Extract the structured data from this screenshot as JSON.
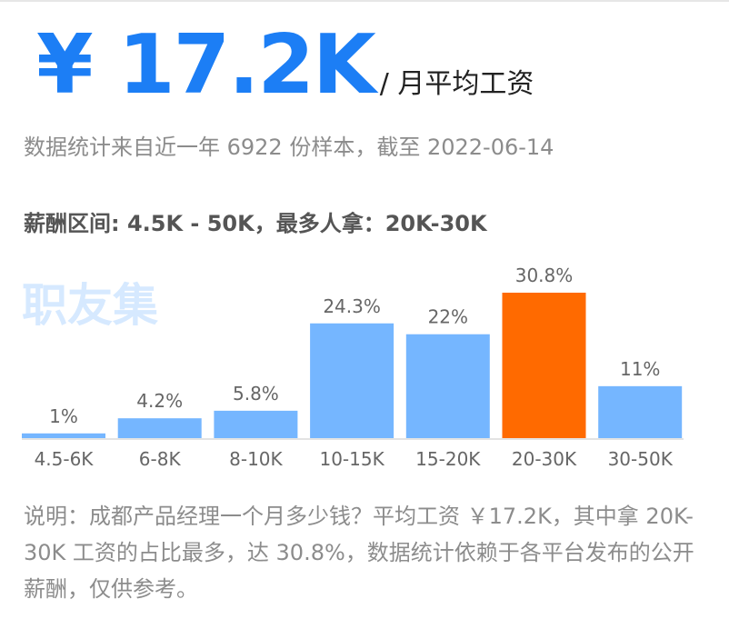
{
  "header": {
    "salary": "¥ 17.2K",
    "unit": "/ 月平均工资"
  },
  "meta": "数据统计来自近一年 6922 份样本，截至 2022-06-14",
  "range_text": "薪酬区间: 4.5K - 50K，最多人拿：20K-30K",
  "watermark": "职友集",
  "chart_data": {
    "type": "bar",
    "categories": [
      "4.5-6K",
      "6-8K",
      "8-10K",
      "10-15K",
      "15-20K",
      "20-30K",
      "30-50K"
    ],
    "values": [
      1,
      4.2,
      5.8,
      24.3,
      22,
      30.8,
      11
    ],
    "value_labels": [
      "1%",
      "4.2%",
      "5.8%",
      "24.3%",
      "22%",
      "30.8%",
      "11%"
    ],
    "highlight_index": 5,
    "colors": {
      "bar": "#75b6ff",
      "highlight": "#ff6a00",
      "axis": "#e3e3e3",
      "label": "#666666"
    },
    "ylim": [
      0,
      30.8
    ]
  },
  "note": "说明：成都产品经理一个月多少钱？平均工资 ￥17.2K，其中拿 20K-30K 工资的占比最多，达 30.8%，数据统计依赖于各平台发布的公开薪酬，仅供参考。"
}
